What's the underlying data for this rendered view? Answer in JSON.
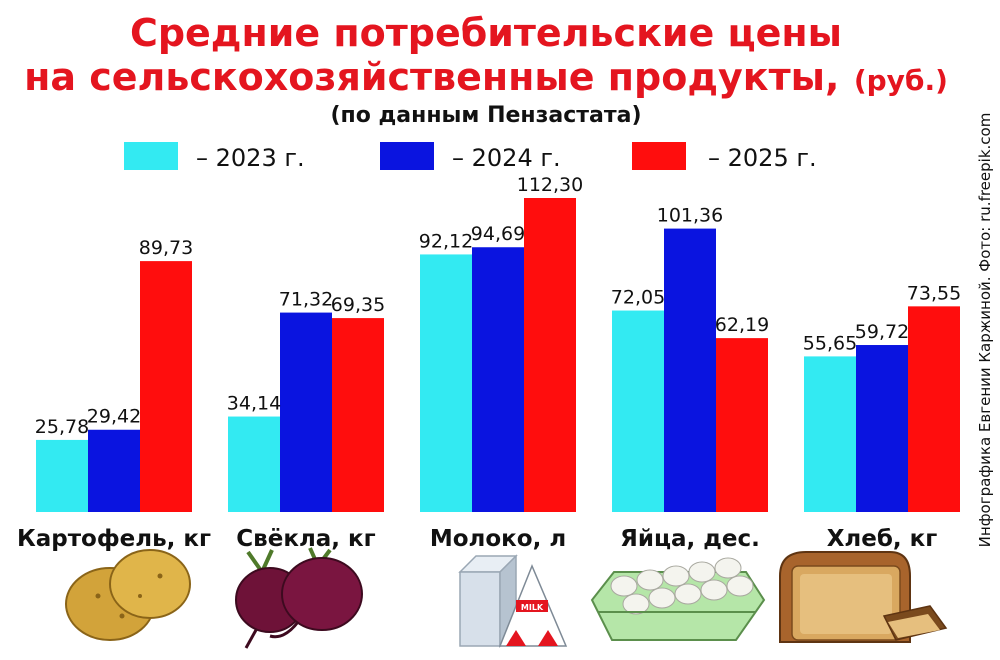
{
  "title_line1": "Средние потребительские цены",
  "title_line2": "на сельскохозяйственные продукты,",
  "title_unit": "(руб.)",
  "subtitle": "(по данным Пензастата)",
  "credit": "Инфографика Евгении Каржиной. Фото: ru.freepik.com",
  "colors": {
    "title": "#e4151f",
    "series_2023": "#33eaf2",
    "series_2024": "#0a14e0",
    "series_2025": "#ff0d0d"
  },
  "icons": [
    "potato-icon",
    "beet-icon",
    "milk-carton-icon",
    "egg-carton-icon",
    "bread-icon"
  ],
  "chart_data": {
    "type": "bar",
    "title": "Средние потребительские цены на сельскохозяйственные продукты, (руб.)",
    "subtitle": "(по данным Пензастата)",
    "categories": [
      "Картофель, кг",
      "Свёкла, кг",
      "Молоко, л",
      "Яйца, дес.",
      "Хлеб, кг"
    ],
    "series": [
      {
        "name": "– 2023 г.",
        "color": "#33eaf2",
        "values": [
          25.78,
          34.14,
          92.12,
          72.05,
          55.65
        ],
        "labels": [
          "25,78",
          "34,14",
          "92,12",
          "72,05",
          "55,65"
        ]
      },
      {
        "name": "– 2024 г.",
        "color": "#0a14e0",
        "values": [
          29.42,
          71.32,
          94.69,
          101.36,
          59.72
        ],
        "labels": [
          "29,42",
          "71,32",
          "94,69",
          "101,36",
          "59,72"
        ]
      },
      {
        "name": "– 2025 г.",
        "color": "#ff0d0d",
        "values": [
          89.73,
          69.35,
          112.3,
          62.19,
          73.55
        ],
        "labels": [
          "89,73",
          "69,35",
          "112,30",
          "62,19",
          "73,55"
        ]
      }
    ],
    "ylim": [
      0,
      120
    ],
    "grid": false,
    "legend_position": "top"
  }
}
